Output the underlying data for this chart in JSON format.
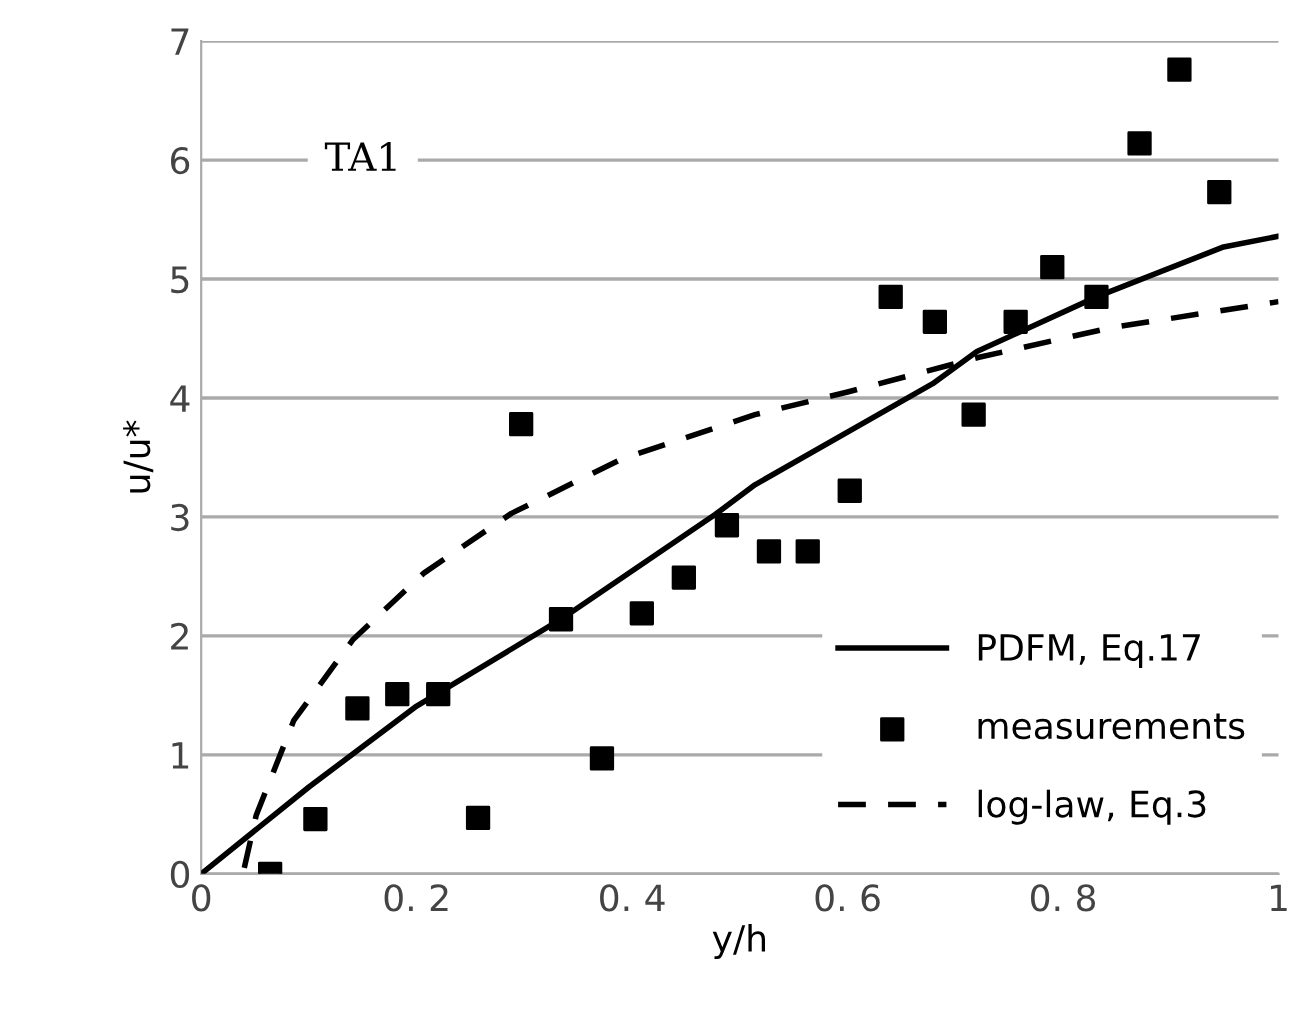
{
  "chart_data": {
    "type": "line",
    "xlabel": "y/h",
    "ylabel": "u/u*",
    "annotations": [
      "TA1"
    ],
    "xlim": [
      0,
      1
    ],
    "ylim": [
      0,
      7
    ],
    "xticks": [
      0,
      {
        "value": 0.2,
        "label": "0. 2"
      },
      {
        "value": 0.4,
        "label": "0. 4"
      },
      {
        "value": 0.6,
        "label": "0. 6"
      },
      {
        "value": 0.8,
        "label": "0. 8"
      },
      1
    ],
    "yticks": [
      0,
      1,
      2,
      3,
      4,
      5,
      6,
      7
    ],
    "grid": "y",
    "legend": "bottom right",
    "series": [
      {
        "name": "PDFM, Eq.17",
        "color": "#000000",
        "line_style": "solid",
        "marker": "none",
        "x": [
          0,
          0.1,
          0.2,
          0.334,
          0.477,
          0.514,
          0.679,
          0.72,
          0.831,
          0.949,
          1.0
        ],
        "values": [
          0,
          0.73,
          1.41,
          2.14,
          3.02,
          3.27,
          4.12,
          4.39,
          4.85,
          5.27,
          5.36
        ]
      },
      {
        "name": "measurements",
        "type": "scatter",
        "color": "#000000",
        "marker": "square",
        "x": [
          0.064,
          0.106,
          0.145,
          0.182,
          0.22,
          0.257,
          0.297,
          0.334,
          0.372,
          0.409,
          0.448,
          0.488,
          0.527,
          0.563,
          0.602,
          0.64,
          0.681,
          0.717,
          0.756,
          0.79,
          0.831,
          0.871,
          0.908,
          0.945
        ],
        "values": [
          0,
          0.46,
          1.39,
          1.51,
          1.51,
          0.47,
          3.78,
          2.14,
          0.97,
          2.19,
          2.49,
          2.93,
          2.71,
          2.71,
          3.22,
          4.85,
          4.64,
          3.86,
          4.64,
          5.1,
          4.85,
          6.14,
          6.76,
          5.73
        ]
      },
      {
        "name": "log-law, Eq.3",
        "color": "#000000",
        "line_style": "dashed",
        "marker": "none",
        "x": [
          0.04,
          0.051,
          0.086,
          0.141,
          0.207,
          0.288,
          0.391,
          0.514,
          0.6,
          0.721,
          0.844,
          1.0
        ],
        "values": [
          0.05,
          0.49,
          1.29,
          1.97,
          2.53,
          3.03,
          3.49,
          3.86,
          4.05,
          4.34,
          4.59,
          4.81
        ]
      }
    ]
  }
}
